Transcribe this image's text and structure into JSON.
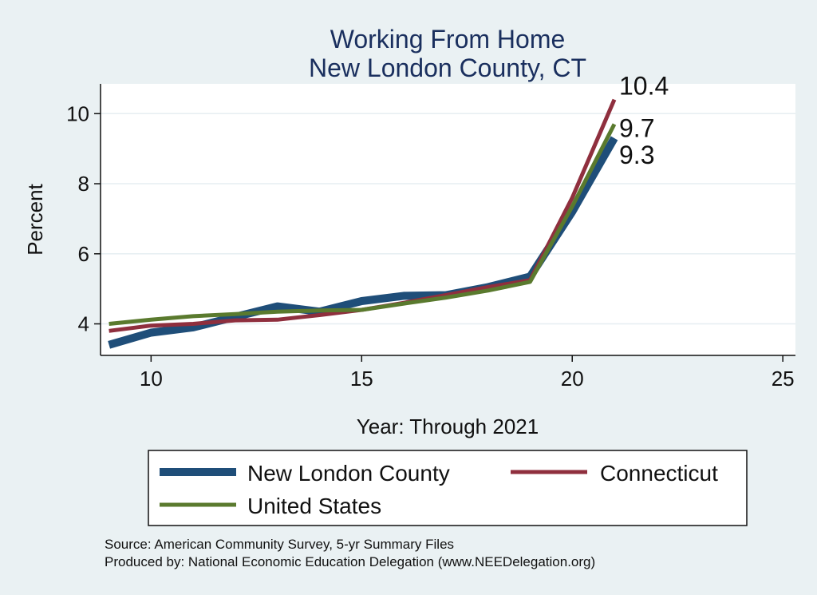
{
  "chart_data": {
    "type": "line",
    "title": "Working From Home",
    "subtitle": "New London County, CT",
    "xlabel": "Year: Through 2021",
    "ylabel": "Percent",
    "xlim": [
      8.8,
      25.3
    ],
    "ylim": [
      3.1,
      10.85
    ],
    "xticks": [
      10,
      15,
      20,
      25
    ],
    "yticks": [
      4,
      6,
      8,
      10
    ],
    "grid": true,
    "legend_position": "bottom",
    "series": [
      {
        "name": "New London County",
        "color": "#1f4e79",
        "x": [
          9,
          10,
          11,
          12,
          13,
          14,
          15,
          16,
          17,
          18,
          19,
          20,
          21
        ],
        "y": [
          3.4,
          3.75,
          3.9,
          4.2,
          4.5,
          4.35,
          4.65,
          4.8,
          4.82,
          5.05,
          5.35,
          7.2,
          9.3
        ],
        "end_label": "9.3"
      },
      {
        "name": "Connecticut",
        "color": "#8f2f3e",
        "x": [
          9,
          10,
          11,
          12,
          13,
          14,
          15,
          16,
          17,
          18,
          19,
          20,
          21
        ],
        "y": [
          3.8,
          3.95,
          4.0,
          4.1,
          4.12,
          4.25,
          4.4,
          4.6,
          4.82,
          5.05,
          5.25,
          7.6,
          10.4
        ],
        "end_label": "10.4"
      },
      {
        "name": "United States",
        "color": "#5a7a2e",
        "x": [
          9,
          10,
          11,
          12,
          13,
          14,
          15,
          16,
          17,
          18,
          19,
          20,
          21
        ],
        "y": [
          4.0,
          4.12,
          4.22,
          4.28,
          4.35,
          4.38,
          4.4,
          4.58,
          4.75,
          4.95,
          5.2,
          7.35,
          9.7
        ],
        "end_label": "9.7"
      }
    ],
    "notes": [
      "Source: American Community Survey, 5-yr Summary Files",
      "Produced by: National Economic Education Delegation (www.NEEDelegation.org)"
    ]
  }
}
